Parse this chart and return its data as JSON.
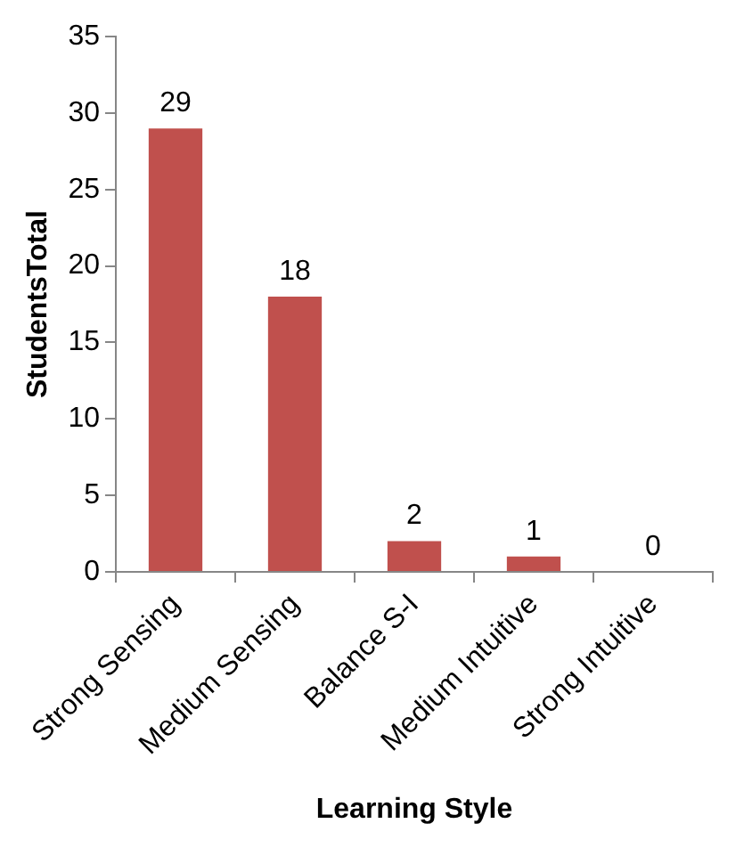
{
  "chart_data": {
    "type": "bar",
    "xlabel": "Learning Style",
    "ylabel": "StudentsTotal",
    "categories": [
      "Strong Sensing",
      "Medium Sensing",
      "Balance S-I",
      "Medium Intuitive",
      "Strong Intuitive"
    ],
    "values": [
      29,
      18,
      2,
      1,
      0
    ],
    "color": "#c0504d",
    "ylim": [
      0,
      35
    ],
    "yticks": [
      0,
      5,
      10,
      15,
      20,
      25,
      30,
      35
    ],
    "grid": false,
    "legend": false,
    "data_labels": true
  }
}
